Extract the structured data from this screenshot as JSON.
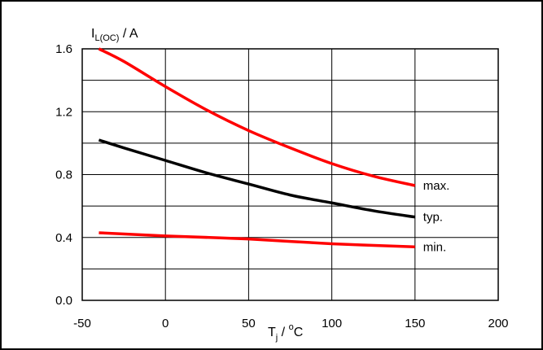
{
  "chart_data": {
    "type": "line",
    "title": "",
    "ylabel": {
      "main": "I",
      "sub": "L(OC)",
      "unit": " / A"
    },
    "xlabel": {
      "main": "T",
      "sub": "j",
      "mid": " / ",
      "sup": "o",
      "unit": "C"
    },
    "xlim": [
      -50,
      200
    ],
    "ylim": [
      0.0,
      1.6
    ],
    "x_ticks": [
      -50,
      0,
      50,
      100,
      150,
      200
    ],
    "x_tick_labels": [
      "-50",
      "0",
      "50",
      "100",
      "150",
      "200"
    ],
    "y_ticks": [
      0.0,
      0.4,
      0.8,
      1.2,
      1.6
    ],
    "y_tick_labels": [
      "0.0",
      "0.4",
      "0.8",
      "1.2",
      "1.6"
    ],
    "y_minor_gridlines": [
      0.2,
      0.6,
      1.0,
      1.4
    ],
    "grid": true,
    "series": [
      {
        "name": "max.",
        "color": "#ff0000",
        "x": [
          -40,
          -25,
          0,
          25,
          50,
          75,
          100,
          125,
          150
        ],
        "y": [
          1.6,
          1.52,
          1.36,
          1.21,
          1.08,
          0.97,
          0.87,
          0.79,
          0.73
        ]
      },
      {
        "name": "typ.",
        "color": "#000000",
        "x": [
          -40,
          -25,
          0,
          25,
          50,
          75,
          100,
          125,
          150
        ],
        "y": [
          1.02,
          0.97,
          0.89,
          0.81,
          0.74,
          0.67,
          0.62,
          0.57,
          0.53
        ]
      },
      {
        "name": "min.",
        "color": "#ff0000",
        "x": [
          -40,
          0,
          50,
          100,
          150
        ],
        "y": [
          0.43,
          0.41,
          0.39,
          0.36,
          0.34
        ]
      }
    ]
  }
}
